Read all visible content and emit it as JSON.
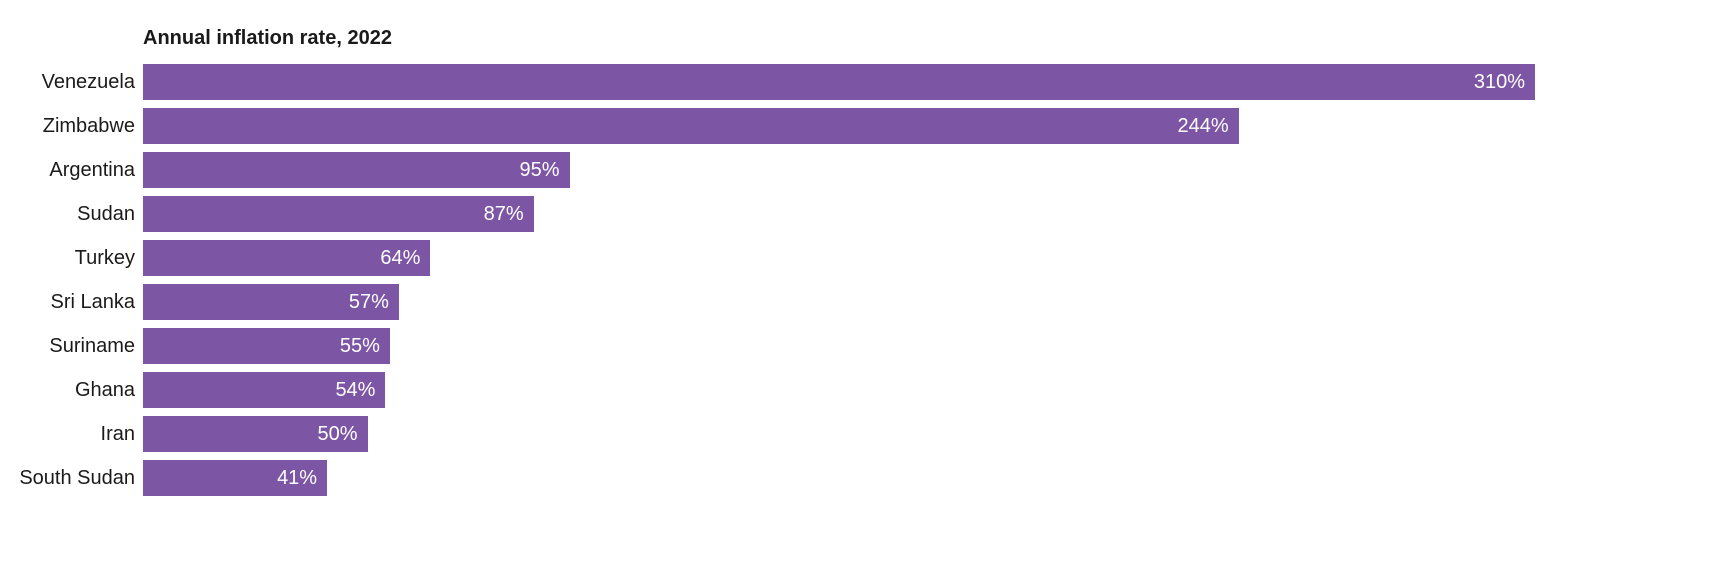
{
  "chart_data": {
    "type": "bar",
    "orientation": "horizontal",
    "title": "Annual inflation rate, 2022",
    "categories": [
      "Venezuela",
      "Zimbabwe",
      "Argentina",
      "Sudan",
      "Turkey",
      "Sri Lanka",
      "Suriname",
      "Ghana",
      "Iran",
      "South Sudan"
    ],
    "values": [
      310,
      244,
      95,
      87,
      64,
      57,
      55,
      54,
      50,
      41
    ],
    "value_labels": [
      "310%",
      "244%",
      "95%",
      "87%",
      "64%",
      "57%",
      "55%",
      "54%",
      "50%",
      "41%"
    ],
    "xlabel": "",
    "ylabel": "",
    "xmax": 310,
    "grid": false,
    "legend": false,
    "bar_color": "#7d55a5",
    "value_label_color": "#ffffff",
    "category_label_color": "#1a1a1a",
    "background_color": "#ffffff"
  }
}
